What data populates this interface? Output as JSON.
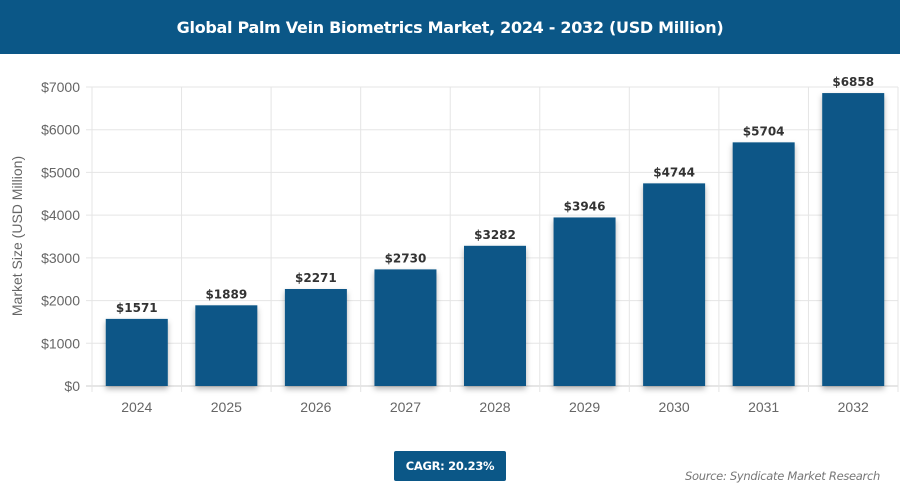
{
  "chart_data": {
    "type": "bar",
    "title": "Global Palm Vein Biometrics Market, 2024 - 2032 (USD Million)",
    "xlabel": "",
    "ylabel": "Market Size (USD Million)",
    "categories": [
      "2024",
      "2025",
      "2026",
      "2027",
      "2028",
      "2029",
      "2030",
      "2031",
      "2032"
    ],
    "values": [
      1571,
      1889,
      2271,
      2730,
      3282,
      3946,
      4744,
      5704,
      6858
    ],
    "data_labels": [
      "$1571",
      "$1889",
      "$2271",
      "$2730",
      "$3282",
      "$3946",
      "$4744",
      "$5704",
      "$6858"
    ],
    "ylim": [
      0,
      7000
    ],
    "yticks": [
      0,
      1000,
      2000,
      3000,
      4000,
      5000,
      6000,
      7000
    ],
    "ytick_labels": [
      "$0",
      "$1000",
      "$2000",
      "$3000",
      "$4000",
      "$5000",
      "$6000",
      "$7000"
    ],
    "grid": true,
    "bar_color": "#0b5787"
  },
  "cagr_label": "CAGR: 20.23%",
  "source": "Source: Syndicate Market Research"
}
